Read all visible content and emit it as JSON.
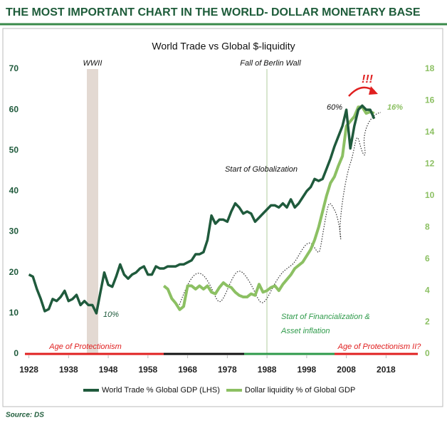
{
  "header": {
    "title": "THE MOST IMPORTANT CHART IN THE WORLD- DOLLAR MONETARY BASE"
  },
  "source": "Source: DS",
  "chart_data": {
    "type": "line",
    "title": "World Trade vs Global $-liquidity",
    "x": [
      1928,
      1929,
      1930,
      1931,
      1932,
      1933,
      1934,
      1935,
      1936,
      1937,
      1938,
      1939,
      1940,
      1941,
      1942,
      1943,
      1944,
      1945,
      1946,
      1947,
      1948,
      1949,
      1950,
      1951,
      1952,
      1953,
      1954,
      1955,
      1956,
      1957,
      1958,
      1959,
      1960,
      1961,
      1962,
      1963,
      1964,
      1965,
      1966,
      1967,
      1968,
      1969,
      1970,
      1971,
      1972,
      1973,
      1974,
      1975,
      1976,
      1977,
      1978,
      1979,
      1980,
      1981,
      1982,
      1983,
      1984,
      1985,
      1986,
      1987,
      1988,
      1989,
      1990,
      1991,
      1992,
      1993,
      1994,
      1995,
      1996,
      1997,
      1998,
      1999,
      2000,
      2001,
      2002,
      2003,
      2004,
      2005,
      2006,
      2007,
      2008,
      2009,
      2010,
      2011,
      2012,
      2013,
      2014,
      2015
    ],
    "series": [
      {
        "name": "World Trade % Global GDP (LHS)",
        "color": "#1f5a3c",
        "values": [
          19.5,
          19,
          16,
          13.5,
          10.5,
          11,
          13.5,
          13,
          14,
          15.5,
          13,
          13.5,
          14.5,
          12,
          13,
          12,
          12,
          10,
          15,
          20,
          17,
          16.5,
          19,
          22,
          19.5,
          18.5,
          19.5,
          20,
          21,
          21.5,
          19.5,
          19.5,
          21.5,
          21,
          21,
          21.5,
          21.5,
          21.5,
          22,
          22,
          22.5,
          23,
          24.5,
          24.5,
          25,
          28,
          34,
          32,
          33,
          33,
          32.5,
          35,
          37,
          36,
          34.5,
          35,
          34.5,
          32.5,
          33.5,
          34.5,
          35.5,
          36.5,
          36.5,
          36,
          37,
          36,
          38,
          36,
          37,
          38.5,
          40,
          41,
          43,
          42.5,
          43,
          45.5,
          48,
          51,
          53.5,
          56,
          60,
          50.5,
          56,
          60,
          61,
          60,
          60,
          57.8
        ]
      },
      {
        "name": "Dollar liquidity % of Global GDP",
        "color": "#8cc063",
        "axis": "y2",
        "values": [
          null,
          null,
          null,
          null,
          null,
          null,
          null,
          null,
          null,
          null,
          null,
          null,
          null,
          null,
          null,
          null,
          null,
          null,
          null,
          null,
          null,
          null,
          null,
          null,
          null,
          null,
          null,
          null,
          null,
          null,
          null,
          null,
          null,
          null,
          4.3,
          4.1,
          3.5,
          3.2,
          2.8,
          3.0,
          4.3,
          4.3,
          4.1,
          4.3,
          4.1,
          4.3,
          3.9,
          3.8,
          4.2,
          4.5,
          4.3,
          4.2,
          3.9,
          3.7,
          3.6,
          3.6,
          3.8,
          3.7,
          4.4,
          3.9,
          4.0,
          4.2,
          4.3,
          4.0,
          4.4,
          4.7,
          5.0,
          5.4,
          5.6,
          5.8,
          6.2,
          6.6,
          7.2,
          8.0,
          9.0,
          10,
          10.8,
          11.2,
          11.9,
          12.5,
          14.4,
          14.7,
          15.0,
          15.6,
          15.6,
          15.2,
          15.3,
          15.2
        ]
      }
    ],
    "xlim": [
      1927,
      2026
    ],
    "xticks": [
      1928,
      1938,
      1948,
      1958,
      1968,
      1978,
      1988,
      1998,
      2008,
      2018
    ],
    "ylim": [
      0,
      70
    ],
    "yticks": [
      0,
      10,
      20,
      30,
      40,
      50,
      60,
      70
    ],
    "y2lim": [
      0,
      18
    ],
    "y2ticks": [
      0,
      2,
      4,
      6,
      8,
      10,
      12,
      14,
      16,
      18
    ],
    "annotations": [
      "WWII",
      "Fall of Berlin Wall",
      "!!!",
      "60%",
      "16%",
      "10%",
      "Start of Globalization",
      "Start of Financialization &",
      "Asset inflation",
      "Age of Protectionism",
      "Age of Protectionism II?"
    ]
  }
}
